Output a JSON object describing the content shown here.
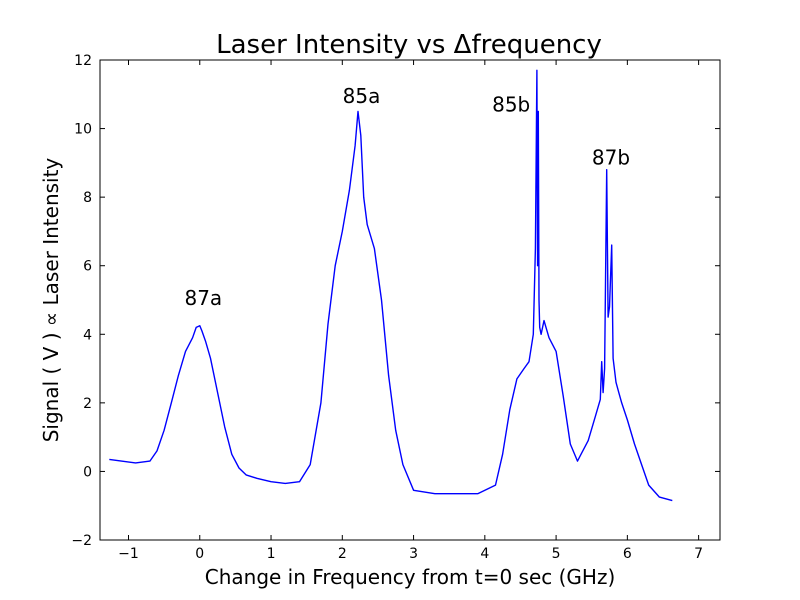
{
  "chart_data": {
    "type": "line",
    "title": "Laser Intensity vs Δfrequency",
    "xlabel": "Change in Frequency from t=0 sec (GHz)",
    "ylabel": "Signal ( V ) ∝ Laser Intensity",
    "xlim": [
      -1.4,
      7.3
    ],
    "ylim": [
      -2,
      12
    ],
    "xticks": [
      -1,
      0,
      1,
      2,
      3,
      4,
      5,
      6,
      7
    ],
    "xtick_labels": [
      "−1",
      "0",
      "1",
      "2",
      "3",
      "4",
      "5",
      "6",
      "7"
    ],
    "yticks": [
      -2,
      0,
      2,
      4,
      6,
      8,
      10,
      12
    ],
    "ytick_labels": [
      "−2",
      "0",
      "2",
      "4",
      "6",
      "8",
      "10",
      "12"
    ],
    "grid": false,
    "line_color": "#0000ff",
    "series": [
      {
        "x": [
          -1.27,
          -1.1,
          -0.9,
          -0.7,
          -0.6,
          -0.5,
          -0.4,
          -0.3,
          -0.2,
          -0.1,
          -0.05,
          0.0,
          0.03,
          0.08,
          0.15,
          0.25,
          0.35,
          0.45,
          0.55,
          0.65,
          0.8,
          1.0,
          1.2,
          1.4,
          1.55,
          1.7,
          1.8,
          1.9,
          2.0,
          2.1,
          2.18,
          2.22,
          2.26,
          2.3,
          2.35,
          2.45,
          2.55,
          2.65,
          2.75,
          2.85,
          3.0,
          3.3,
          3.6,
          3.9,
          4.15,
          4.25,
          4.35,
          4.45,
          4.55,
          4.62,
          4.68,
          4.71,
          4.73,
          4.74,
          4.75,
          4.76,
          4.77,
          4.79,
          4.83,
          4.9,
          5.0,
          5.1,
          5.2,
          5.3,
          5.35,
          5.45,
          5.55,
          5.62,
          5.64,
          5.66,
          5.68,
          5.71,
          5.73,
          5.75,
          5.78,
          5.8,
          5.84,
          5.88,
          5.92,
          6.0,
          6.1,
          6.2,
          6.3,
          6.45,
          6.63
        ],
        "y": [
          0.35,
          0.3,
          0.25,
          0.3,
          0.6,
          1.2,
          2.0,
          2.8,
          3.5,
          3.9,
          4.2,
          4.25,
          4.1,
          3.8,
          3.3,
          2.3,
          1.3,
          0.5,
          0.1,
          -0.1,
          -0.2,
          -0.3,
          -0.35,
          -0.3,
          0.2,
          2.0,
          4.3,
          6.0,
          7.0,
          8.2,
          9.5,
          10.5,
          9.8,
          8.0,
          7.2,
          6.5,
          5.0,
          2.8,
          1.2,
          0.2,
          -0.55,
          -0.65,
          -0.65,
          -0.65,
          -0.4,
          0.5,
          1.8,
          2.7,
          3.0,
          3.2,
          4.0,
          6.5,
          11.7,
          6.0,
          10.5,
          5.0,
          4.2,
          4.0,
          4.4,
          3.9,
          3.5,
          2.2,
          0.8,
          0.3,
          0.5,
          0.9,
          1.6,
          2.1,
          3.2,
          2.3,
          3.0,
          8.8,
          4.5,
          4.8,
          6.6,
          3.3,
          2.6,
          2.3,
          2.0,
          1.5,
          0.8,
          0.2,
          -0.4,
          -0.75,
          -0.85
        ]
      }
    ],
    "annotations": [
      {
        "text": "87a",
        "x": 0.05,
        "y": 4.85
      },
      {
        "text": "85a",
        "x": 2.27,
        "y": 10.75
      },
      {
        "text": "85b",
        "x": 4.37,
        "y": 10.5
      },
      {
        "text": "87b",
        "x": 5.77,
        "y": 8.95
      }
    ]
  }
}
